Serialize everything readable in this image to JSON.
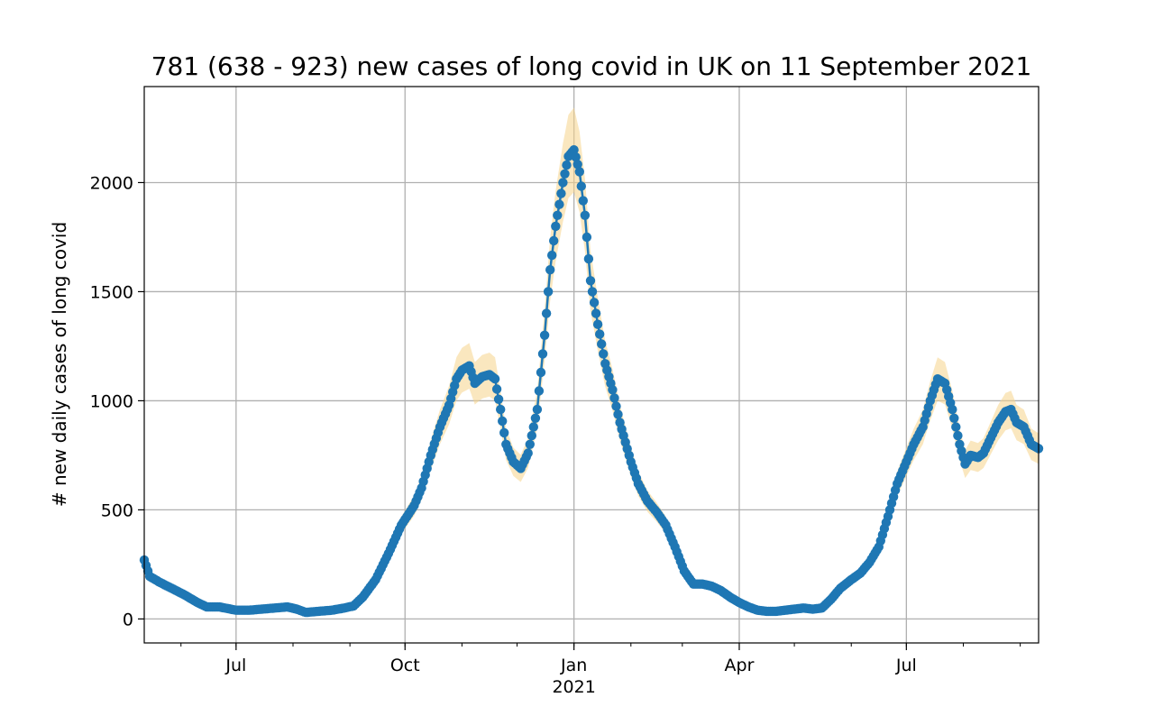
{
  "chart_data": {
    "type": "line",
    "title": "781 (638 - 923) new cases of long covid in UK on 11 September 2021",
    "xlabel": "",
    "ylabel": "# new daily cases of long covid",
    "ylim": [
      -110,
      2440
    ],
    "xlim": [
      "2020-05-12",
      "2021-09-11"
    ],
    "grid": true,
    "x_ticks": [
      {
        "date": "2020-07-01",
        "label": "Jul"
      },
      {
        "date": "2020-10-01",
        "label": "Oct"
      },
      {
        "date": "2021-01-01",
        "label": "Jan",
        "sublabel": "2021"
      },
      {
        "date": "2021-04-01",
        "label": "Apr"
      },
      {
        "date": "2021-07-01",
        "label": "Jul"
      }
    ],
    "y_ticks": [
      0,
      500,
      1000,
      1500,
      2000
    ],
    "colors": {
      "line": "#1f77b4",
      "band": "#f5d48a"
    },
    "band_fraction": 0.09,
    "series": [
      {
        "name": "",
        "points": [
          [
            "2020-05-12",
            270
          ],
          [
            "2020-05-15",
            195
          ],
          [
            "2020-05-20",
            170
          ],
          [
            "2020-05-27",
            140
          ],
          [
            "2020-06-03",
            110
          ],
          [
            "2020-06-10",
            75
          ],
          [
            "2020-06-15",
            55
          ],
          [
            "2020-06-22",
            55
          ],
          [
            "2020-07-01",
            40
          ],
          [
            "2020-07-08",
            40
          ],
          [
            "2020-07-15",
            45
          ],
          [
            "2020-07-22",
            50
          ],
          [
            "2020-07-29",
            55
          ],
          [
            "2020-08-03",
            45
          ],
          [
            "2020-08-08",
            30
          ],
          [
            "2020-08-15",
            35
          ],
          [
            "2020-08-22",
            40
          ],
          [
            "2020-08-29",
            50
          ],
          [
            "2020-09-03",
            60
          ],
          [
            "2020-09-08",
            100
          ],
          [
            "2020-09-15",
            180
          ],
          [
            "2020-09-22",
            300
          ],
          [
            "2020-09-29",
            430
          ],
          [
            "2020-10-06",
            520
          ],
          [
            "2020-10-10",
            600
          ],
          [
            "2020-10-15",
            750
          ],
          [
            "2020-10-20",
            880
          ],
          [
            "2020-10-25",
            980
          ],
          [
            "2020-10-29",
            1100
          ],
          [
            "2020-11-01",
            1140
          ],
          [
            "2020-11-05",
            1160
          ],
          [
            "2020-11-08",
            1080
          ],
          [
            "2020-11-12",
            1110
          ],
          [
            "2020-11-16",
            1120
          ],
          [
            "2020-11-19",
            1100
          ],
          [
            "2020-11-22",
            960
          ],
          [
            "2020-11-25",
            800
          ],
          [
            "2020-11-29",
            720
          ],
          [
            "2020-12-03",
            690
          ],
          [
            "2020-12-07",
            760
          ],
          [
            "2020-12-12",
            960
          ],
          [
            "2020-12-16",
            1300
          ],
          [
            "2020-12-19",
            1600
          ],
          [
            "2020-12-22",
            1800
          ],
          [
            "2020-12-26",
            2000
          ],
          [
            "2020-12-29",
            2120
          ],
          [
            "2021-01-01",
            2150
          ],
          [
            "2021-01-04",
            2050
          ],
          [
            "2021-01-07",
            1850
          ],
          [
            "2021-01-10",
            1550
          ],
          [
            "2021-01-14",
            1350
          ],
          [
            "2021-01-18",
            1170
          ],
          [
            "2021-01-22",
            1050
          ],
          [
            "2021-01-26",
            900
          ],
          [
            "2021-02-01",
            720
          ],
          [
            "2021-02-05",
            620
          ],
          [
            "2021-02-10",
            540
          ],
          [
            "2021-02-15",
            490
          ],
          [
            "2021-02-20",
            430
          ],
          [
            "2021-02-25",
            330
          ],
          [
            "2021-03-02",
            220
          ],
          [
            "2021-03-07",
            160
          ],
          [
            "2021-03-12",
            160
          ],
          [
            "2021-03-17",
            150
          ],
          [
            "2021-03-22",
            130
          ],
          [
            "2021-03-27",
            100
          ],
          [
            "2021-04-01",
            75
          ],
          [
            "2021-04-06",
            55
          ],
          [
            "2021-04-11",
            40
          ],
          [
            "2021-04-16",
            35
          ],
          [
            "2021-04-21",
            35
          ],
          [
            "2021-04-26",
            40
          ],
          [
            "2021-05-01",
            45
          ],
          [
            "2021-05-06",
            50
          ],
          [
            "2021-05-11",
            45
          ],
          [
            "2021-05-16",
            50
          ],
          [
            "2021-05-21",
            90
          ],
          [
            "2021-05-26",
            140
          ],
          [
            "2021-06-01",
            180
          ],
          [
            "2021-06-06",
            210
          ],
          [
            "2021-06-11",
            260
          ],
          [
            "2021-06-16",
            330
          ],
          [
            "2021-06-21",
            470
          ],
          [
            "2021-06-26",
            620
          ],
          [
            "2021-07-01",
            720
          ],
          [
            "2021-07-05",
            800
          ],
          [
            "2021-07-10",
            880
          ],
          [
            "2021-07-14",
            1000
          ],
          [
            "2021-07-18",
            1100
          ],
          [
            "2021-07-22",
            1080
          ],
          [
            "2021-07-26",
            960
          ],
          [
            "2021-07-30",
            800
          ],
          [
            "2021-08-02",
            710
          ],
          [
            "2021-08-05",
            750
          ],
          [
            "2021-08-09",
            740
          ],
          [
            "2021-08-12",
            760
          ],
          [
            "2021-08-16",
            830
          ],
          [
            "2021-08-20",
            900
          ],
          [
            "2021-08-24",
            950
          ],
          [
            "2021-08-27",
            960
          ],
          [
            "2021-08-30",
            900
          ],
          [
            "2021-09-03",
            880
          ],
          [
            "2021-09-07",
            800
          ],
          [
            "2021-09-11",
            781
          ]
        ]
      }
    ]
  }
}
